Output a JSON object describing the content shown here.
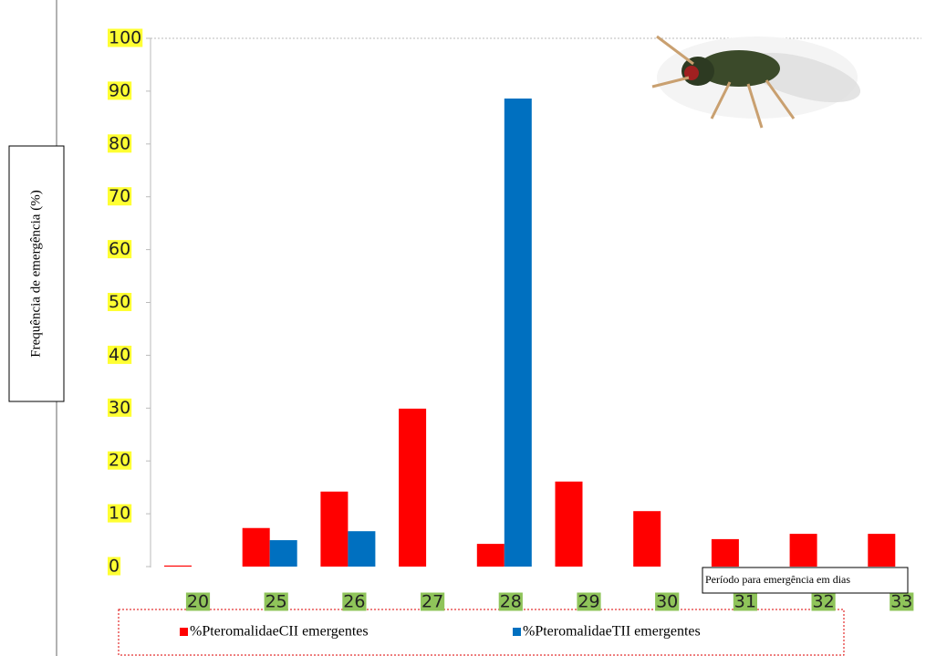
{
  "chart_data": {
    "type": "bar",
    "ylabel": "Frequência de emergência (%)",
    "xlabel": "Período para emergência em dias",
    "categories": [
      "20",
      "25",
      "26",
      "27",
      "28",
      "29",
      "30",
      "31",
      "32",
      "33"
    ],
    "series": [
      {
        "name": "%PteromalidaeCII emergentes",
        "color": "#ff0000",
        "values": [
          0.2,
          7.3,
          14.2,
          29.9,
          4.3,
          16.1,
          10.5,
          5.2,
          6.2,
          6.2
        ]
      },
      {
        "name": "%PteromalidaeTII emergentes",
        "color": "#0070c0",
        "values": [
          0,
          5.0,
          6.7,
          0,
          88.6,
          0,
          0,
          0,
          0,
          0
        ]
      }
    ],
    "ylim": [
      0,
      100
    ],
    "yticks": [
      0,
      10,
      20,
      30,
      40,
      50,
      60,
      70,
      80,
      90,
      100
    ],
    "grid": false
  }
}
